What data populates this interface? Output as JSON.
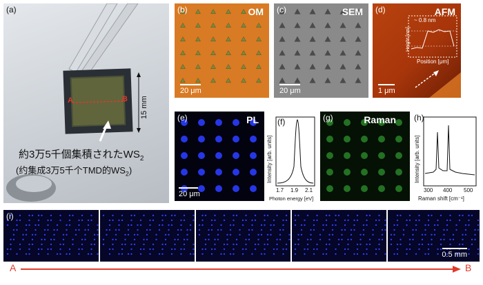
{
  "panels": {
    "a": {
      "label": "(a)",
      "dimension": "15 mm",
      "marker_a": "A",
      "marker_b": "B",
      "caption_jp_main": "約3万5千個集積された",
      "caption_jp_sub": "2",
      "caption_cn_open": "(约集成3万5千个TMD的",
      "caption_cn_close": ")",
      "caption_ws": "WS"
    },
    "b": {
      "label": "(b)",
      "title": "OM",
      "scale": "20 μm"
    },
    "c": {
      "label": "(c)",
      "title": "SEM",
      "scale": "20 μm"
    },
    "d": {
      "label": "(d)",
      "title": "AFM",
      "scale": "1 μm",
      "inset_ylabel": "Height [nm]",
      "inset_xlabel": "Position [μm]",
      "inset_value": "~ 0.8 nm"
    },
    "e": {
      "label": "(e)",
      "title": "PL",
      "scale": "20 μm"
    },
    "f": {
      "label": "(f)",
      "ylabel": "Intensity [arb. units]",
      "xlabel": "Photon energy [eV]",
      "ticks": [
        "1.7",
        "1.9",
        "2.1"
      ]
    },
    "g": {
      "label": "(g)",
      "title": "Raman"
    },
    "h": {
      "label": "(h)",
      "ylabel": "Intensity [arb. units]",
      "xlabel": "Raman shift [cm⁻¹]",
      "ticks": [
        "300",
        "400",
        "500"
      ]
    },
    "i": {
      "label": "(i)",
      "scale": "0.5 mm"
    }
  },
  "arrow": {
    "start": "A",
    "end": "B"
  },
  "colors": {
    "om": "#d97a24",
    "sem": "#8a8a8a",
    "afm": "#a7350a",
    "pl": "#2233dd",
    "raman": "#1f6a1f",
    "arrow": "#e03a2a"
  }
}
